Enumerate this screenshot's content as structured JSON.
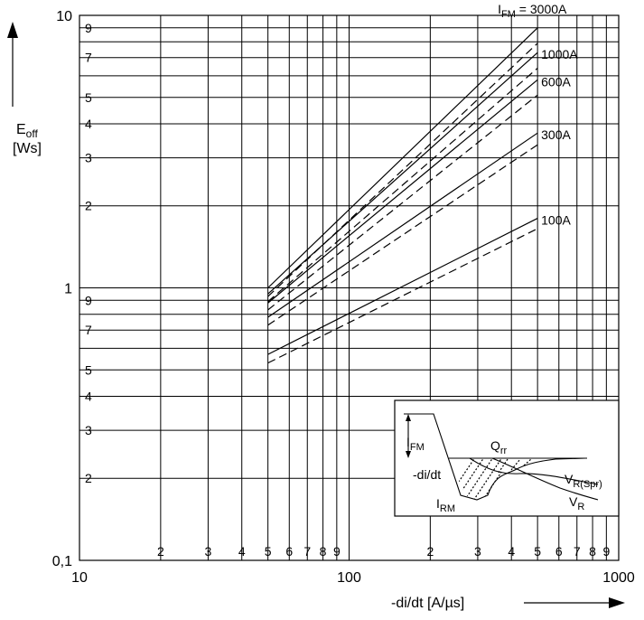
{
  "chart_data": {
    "type": "line",
    "scale": "log-log",
    "xlabel": "-di/dt [A/µs]",
    "ylabel_main": "E",
    "ylabel_sub": "off",
    "ylabel_unit": "[Ws]",
    "xlim": [
      10,
      1000
    ],
    "ylim": [
      0.1,
      10
    ],
    "x_major_ticks": [
      {
        "value": 10,
        "label": "10"
      },
      {
        "value": 100,
        "label": "100"
      },
      {
        "value": 1000,
        "label": "1000"
      }
    ],
    "x_minor_ticks": [
      {
        "value": 20,
        "label": "2"
      },
      {
        "value": 30,
        "label": "3"
      },
      {
        "value": 40,
        "label": "4"
      },
      {
        "value": 50,
        "label": "5"
      },
      {
        "value": 60,
        "label": "6"
      },
      {
        "value": 70,
        "label": "7"
      },
      {
        "value": 80,
        "label": "8"
      },
      {
        "value": 90,
        "label": "9"
      },
      {
        "value": 200,
        "label": "2"
      },
      {
        "value": 300,
        "label": "3"
      },
      {
        "value": 400,
        "label": "4"
      },
      {
        "value": 500,
        "label": "5"
      },
      {
        "value": 600,
        "label": "6"
      },
      {
        "value": 700,
        "label": "7"
      },
      {
        "value": 800,
        "label": "8"
      },
      {
        "value": 900,
        "label": "9"
      }
    ],
    "y_major_ticks": [
      {
        "value": 0.1,
        "label": "0,1"
      },
      {
        "value": 1,
        "label": "1"
      },
      {
        "value": 10,
        "label": "10"
      }
    ],
    "y_minor_ticks": [
      {
        "value": 0.2,
        "label": "2"
      },
      {
        "value": 0.3,
        "label": "3"
      },
      {
        "value": 0.4,
        "label": "4"
      },
      {
        "value": 0.5,
        "label": "5"
      },
      {
        "value": 0.7,
        "label": "7"
      },
      {
        "value": 0.9,
        "label": "9"
      },
      {
        "value": 2,
        "label": "2"
      },
      {
        "value": 3,
        "label": "3"
      },
      {
        "value": 4,
        "label": "4"
      },
      {
        "value": 5,
        "label": "5"
      },
      {
        "value": 7,
        "label": "7"
      },
      {
        "value": 9,
        "label": "9"
      }
    ],
    "y_unlabeled_gridlines": [
      0.6,
      0.8,
      6,
      8
    ],
    "series": [
      {
        "name": "IFM = 3000A",
        "label_main": "I",
        "label_sub": "FM",
        "label_rest": " = 3000A",
        "solid": [
          [
            50,
            1.0
          ],
          [
            500,
            9.0
          ]
        ],
        "dashed": [
          [
            50,
            0.93
          ],
          [
            500,
            7.9
          ]
        ]
      },
      {
        "name": "1000A",
        "label_main": "1000A",
        "label_sub": "",
        "label_rest": "",
        "solid": [
          [
            50,
            0.95
          ],
          [
            500,
            7.3
          ]
        ],
        "dashed": [
          [
            50,
            0.89
          ],
          [
            500,
            6.4
          ]
        ]
      },
      {
        "name": "600A",
        "label_main": "600A",
        "label_sub": "",
        "label_rest": "",
        "solid": [
          [
            50,
            0.88
          ],
          [
            500,
            5.8
          ]
        ],
        "dashed": [
          [
            50,
            0.83
          ],
          [
            500,
            5.1
          ]
        ]
      },
      {
        "name": "300A",
        "label_main": "300A",
        "label_sub": "",
        "label_rest": "",
        "solid": [
          [
            50,
            0.78
          ],
          [
            500,
            3.7
          ]
        ],
        "dashed": [
          [
            50,
            0.73
          ],
          [
            500,
            3.35
          ]
        ]
      },
      {
        "name": "100A",
        "label_main": "100A",
        "label_sub": "",
        "label_rest": "",
        "solid": [
          [
            50,
            0.57
          ],
          [
            500,
            1.8
          ]
        ],
        "dashed": [
          [
            50,
            0.53
          ],
          [
            500,
            1.65
          ]
        ]
      }
    ],
    "grid": true,
    "inset": {
      "type": "waveform-diagram",
      "labels": {
        "ifm": {
          "main": "I",
          "sub": "FM"
        },
        "qrr": {
          "main": "Q",
          "sub": "rr"
        },
        "didt": "-di/dt",
        "irm": {
          "main": "I",
          "sub": "RM"
        },
        "vrspr": {
          "main": "V",
          "sub": "R(Spr)"
        },
        "vr": {
          "main": "V",
          "sub": "R"
        }
      }
    }
  }
}
